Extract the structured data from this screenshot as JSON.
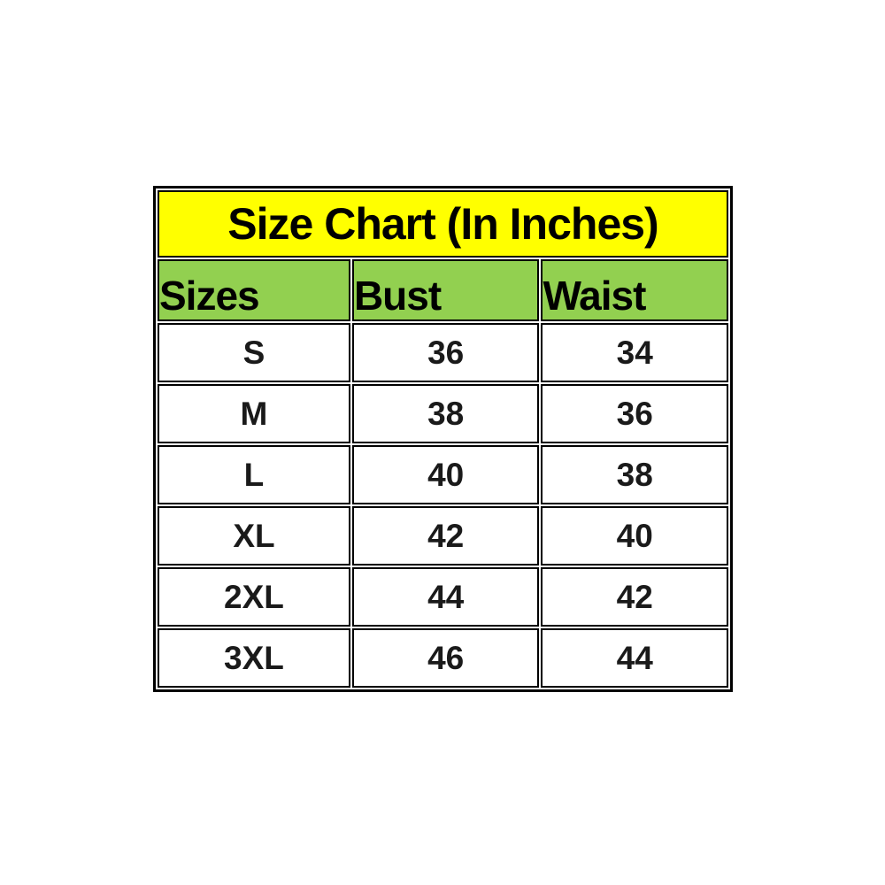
{
  "chart_data": {
    "type": "table",
    "title": "Size Chart (In Inches)",
    "columns": [
      "Sizes",
      "Bust",
      "Waist"
    ],
    "rows": [
      [
        "S",
        "36",
        "34"
      ],
      [
        "M",
        "38",
        "36"
      ],
      [
        "L",
        "40",
        "38"
      ],
      [
        "XL",
        "42",
        "40"
      ],
      [
        "2XL",
        "44",
        "42"
      ],
      [
        "3XL",
        "46",
        "44"
      ]
    ],
    "layout_hints": {
      "title_row_bg": "#ffff00",
      "header_row_bg": "#92d050",
      "data_row_bg": "#ffffff",
      "border_color": "#000000",
      "title_align": "center",
      "header_align": "left",
      "data_align": "center"
    }
  }
}
